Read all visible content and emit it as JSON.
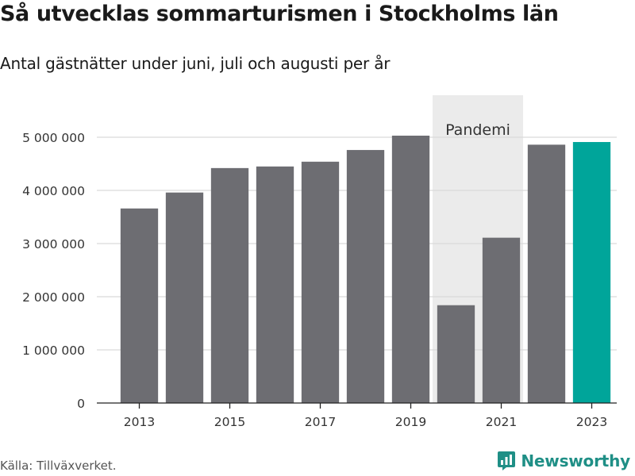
{
  "title": "Så utvecklas sommarturismen i Stockholms län",
  "subtitle": "Antal gästnätter under juni, juli och augusti per år",
  "source": "Källa: Tillväxverket.",
  "brand": {
    "name": "Newsworthy",
    "icon": "newsworthy-logo-icon"
  },
  "colors": {
    "bar": "#6d6d72",
    "highlight": "#00a59a",
    "shade": "#ebebeb",
    "grid": "#d9d9d9",
    "brand": "#1f8f86"
  },
  "chart_data": {
    "type": "bar",
    "categories": [
      "2013",
      "2014",
      "2015",
      "2016",
      "2017",
      "2018",
      "2019",
      "2020",
      "2021",
      "2022",
      "2023"
    ],
    "values": [
      3660000,
      3960000,
      4420000,
      4450000,
      4540000,
      4760000,
      5030000,
      1840000,
      3110000,
      4860000,
      4910000
    ],
    "highlight_category": "2023",
    "shaded_period": {
      "label": "Pandemi",
      "from": "2020",
      "to": "2021"
    },
    "xticks": [
      "2013",
      "2015",
      "2017",
      "2019",
      "2021",
      "2023"
    ],
    "yticks": [
      0,
      1000000,
      2000000,
      3000000,
      4000000,
      5000000
    ],
    "ytick_labels": [
      "0",
      "1 000 000",
      "2 000 000",
      "3 000 000",
      "4 000 000",
      "5 000 000"
    ],
    "ylim": [
      0,
      5500000
    ],
    "grid": true,
    "title": "Så utvecklas sommarturismen i Stockholms län",
    "subtitle": "Antal gästnätter under juni, juli och augusti per år"
  }
}
